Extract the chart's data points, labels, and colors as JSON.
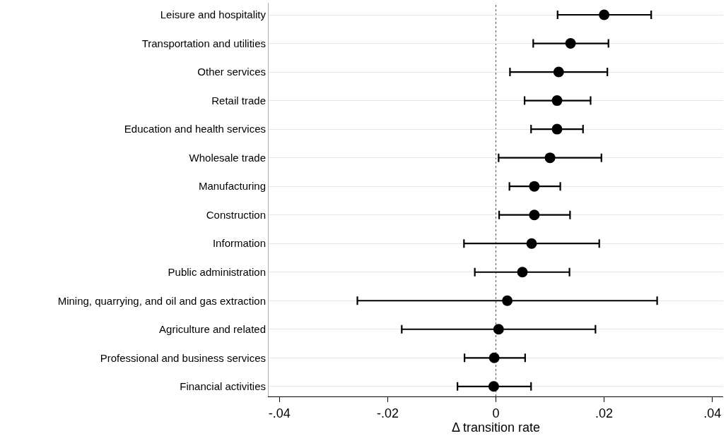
{
  "chart_data": {
    "type": "scatter",
    "orientation": "horizontal",
    "xlabel": "Δ transition rate",
    "categories": [
      "Leisure and hospitality",
      "Transportation and utilities",
      "Other services",
      "Retail trade",
      "Education and health services",
      "Wholesale trade",
      "Manufacturing",
      "Construction",
      "Information",
      "Public administration",
      "Mining, quarrying, and oil and gas extraction",
      "Agriculture and related",
      "Professional and business services",
      "Financial activities"
    ],
    "values": [
      0.02,
      0.0138,
      0.0116,
      0.0113,
      0.0113,
      0.01,
      0.0071,
      0.0071,
      0.0066,
      0.0049,
      0.0021,
      0.0005,
      -0.0003,
      -0.0004
    ],
    "errors": [
      [
        0.0114,
        0.0287
      ],
      [
        0.0069,
        0.0208
      ],
      [
        0.0026,
        0.0206
      ],
      [
        0.0053,
        0.0175
      ],
      [
        0.0065,
        0.0161
      ],
      [
        0.0005,
        0.0195
      ],
      [
        0.0025,
        0.0119
      ],
      [
        0.0006,
        0.0137
      ],
      [
        -0.0059,
        0.0191
      ],
      [
        -0.0039,
        0.0136
      ],
      [
        -0.0256,
        0.0298
      ],
      [
        -0.0174,
        0.0184
      ],
      [
        -0.0058,
        0.0054
      ],
      [
        -0.0071,
        0.0065
      ]
    ],
    "color": "#000000",
    "xlim": [
      -0.042,
      0.042
    ],
    "xticks": [
      {
        "value": -0.04,
        "label": "-.04"
      },
      {
        "value": -0.02,
        "label": "-.02"
      },
      0,
      {
        "value": 0.02,
        "label": ".02"
      },
      {
        "value": 0.04,
        "label": ".04"
      }
    ],
    "ref_lines": [
      {
        "axis": "x",
        "value": 0,
        "color": "#555555",
        "line_style": "dotted"
      }
    ],
    "grid": "y",
    "marker": "circle"
  }
}
